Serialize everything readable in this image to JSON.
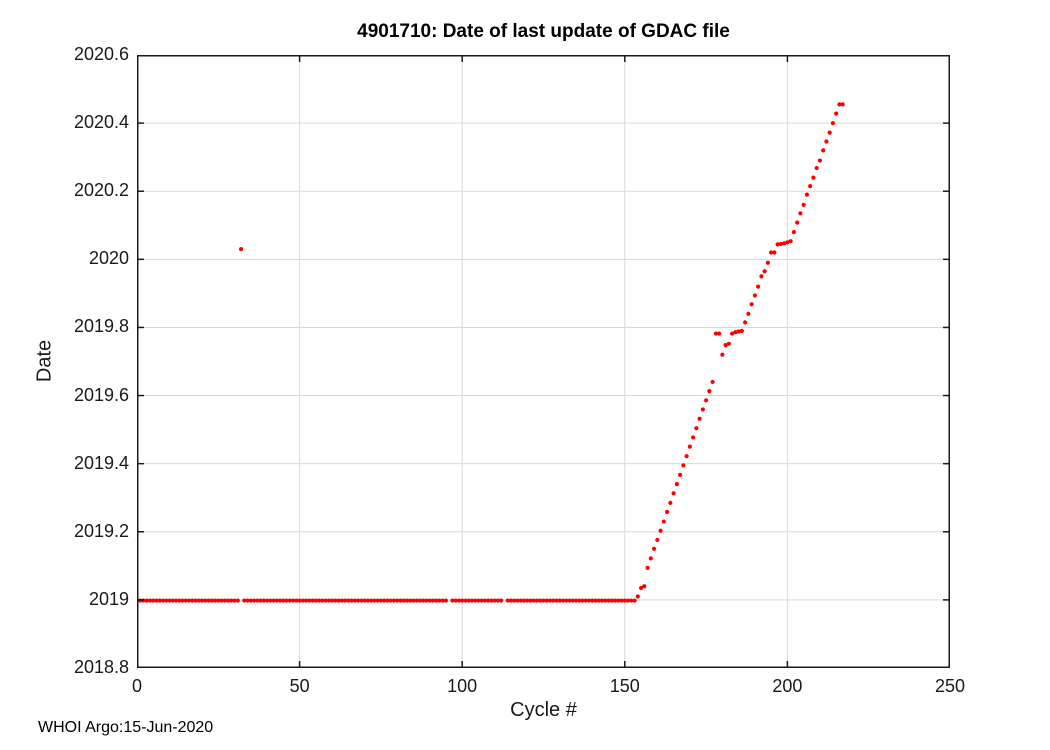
{
  "figure": {
    "footer": "WHOI Argo:15-Jun-2020"
  },
  "colors": {
    "background": "#ffffff",
    "axis": "#1a1a1a",
    "grid": "#d9d9d9",
    "marker": "#ff0000",
    "title_text": "#000000"
  },
  "chart_data": {
    "type": "scatter",
    "title": "4901710: Date of last update of GDAC file",
    "xlabel": "Cycle #",
    "ylabel": "Date",
    "xlim": [
      0,
      250
    ],
    "ylim": [
      2018.8,
      2020.6
    ],
    "xticks": [
      0,
      50,
      100,
      150,
      200,
      250
    ],
    "yticks": [
      [
        2018.8,
        "2018.8"
      ],
      [
        2019,
        "2019"
      ],
      [
        2019.2,
        "2019.2"
      ],
      [
        2019.4,
        "2019.4"
      ],
      [
        2019.6,
        "2019.6"
      ],
      [
        2019.8,
        "2019.8"
      ],
      [
        2020,
        "2020"
      ],
      [
        2020.2,
        "2020.2"
      ],
      [
        2020.4,
        "2020.4"
      ],
      [
        2020.6,
        "2020.6"
      ]
    ],
    "grid": true,
    "legend": null,
    "marker": {
      "shape": "dot",
      "color": "#ff0000",
      "radius": 2.1
    },
    "series_description": "Date of last GDAC file update per cycle: flat at ~2019.0 for cycles 0-153 (missing cycles 32, 96, 113), one outlier at (32, 2020.03), then rising roughly linearly from (154, 2019.01) to (217, 2020.455) with small plateaus near 2019.78 and 2020.05",
    "flat_value": 2018.998,
    "flat_segments": [
      {
        "from": 0,
        "to": 31
      },
      {
        "from": 33,
        "to": 95
      },
      {
        "from": 97,
        "to": 112
      },
      {
        "from": 114,
        "to": 153
      }
    ],
    "outlier": [
      32,
      2020.03
    ],
    "rise_points": [
      [
        154,
        2019.01
      ],
      [
        155,
        2019.035
      ],
      [
        156,
        2019.04
      ],
      [
        157,
        2019.094
      ],
      [
        158,
        2019.122
      ],
      [
        159,
        2019.15
      ],
      [
        160,
        2019.176
      ],
      [
        161,
        2019.203
      ],
      [
        162,
        2019.23
      ],
      [
        163,
        2019.258
      ],
      [
        164,
        2019.285
      ],
      [
        165,
        2019.313
      ],
      [
        166,
        2019.34
      ],
      [
        167,
        2019.367
      ],
      [
        168,
        2019.395
      ],
      [
        169,
        2019.422
      ],
      [
        170,
        2019.45
      ],
      [
        171,
        2019.477
      ],
      [
        172,
        2019.504
      ],
      [
        173,
        2019.532
      ],
      [
        174,
        2019.559
      ],
      [
        175,
        2019.586
      ],
      [
        176,
        2019.613
      ],
      [
        177,
        2019.64
      ],
      [
        178,
        2019.782
      ],
      [
        179,
        2019.782
      ],
      [
        180,
        2019.72
      ],
      [
        181,
        2019.748
      ],
      [
        182,
        2019.752
      ],
      [
        183,
        2019.782
      ],
      [
        184,
        2019.786
      ],
      [
        185,
        2019.788
      ],
      [
        186,
        2019.79
      ],
      [
        187,
        2019.815
      ],
      [
        188,
        2019.84
      ],
      [
        189,
        2019.868
      ],
      [
        190,
        2019.894
      ],
      [
        191,
        2019.92
      ],
      [
        192,
        2019.95
      ],
      [
        193,
        2019.965
      ],
      [
        194,
        2019.99
      ],
      [
        195,
        2020.02
      ],
      [
        196,
        2020.02
      ],
      [
        197,
        2020.044
      ],
      [
        198,
        2020.045
      ],
      [
        199,
        2020.047
      ],
      [
        200,
        2020.05
      ],
      [
        201,
        2020.053
      ],
      [
        202,
        2020.08
      ],
      [
        203,
        2020.108
      ],
      [
        204,
        2020.135
      ],
      [
        205,
        2020.16
      ],
      [
        206,
        2020.19
      ],
      [
        207,
        2020.215
      ],
      [
        208,
        2020.24
      ],
      [
        209,
        2020.268
      ],
      [
        210,
        2020.29
      ],
      [
        211,
        2020.32
      ],
      [
        212,
        2020.346
      ],
      [
        213,
        2020.372
      ],
      [
        214,
        2020.4
      ],
      [
        215,
        2020.428
      ],
      [
        216,
        2020.455
      ],
      [
        217,
        2020.455
      ]
    ]
  }
}
